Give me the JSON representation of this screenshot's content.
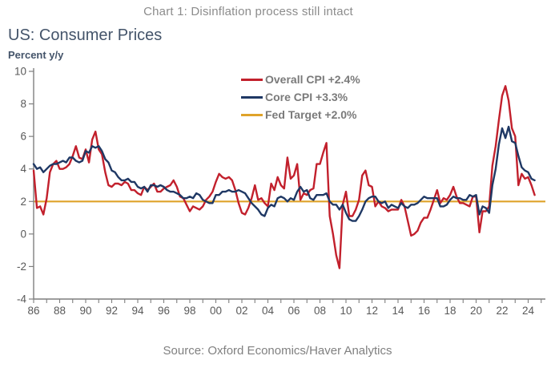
{
  "figure": {
    "caption": "Chart 1: Disinflation process still intact",
    "source": "Source: Oxford Economics/Haver Analytics"
  },
  "chart": {
    "title": "US: Consumer Prices",
    "unit_label": "Percent y/y"
  },
  "legend": {
    "items": [
      {
        "label": "Overall CPI +2.4%",
        "color": "#c2202c"
      },
      {
        "label": "Core CPI +3.3%",
        "color": "#1f3864"
      },
      {
        "label": "Fed Target +2.0%",
        "color": "#dfa32a"
      }
    ]
  },
  "colors": {
    "overall_cpi": "#c2202c",
    "core_cpi": "#1f3864",
    "fed_target": "#dfa32a",
    "axis": "#7f7f7f",
    "tick_text": "#595959",
    "heading": "#44546a",
    "caption_text": "#8c8c8c"
  },
  "chart_data": {
    "type": "line",
    "title": "US: Consumer Prices",
    "ylabel": "Percent y/y",
    "grid": false,
    "legend_position": "top-center",
    "x_axis": {
      "start_year": 1986,
      "end_year": 2025,
      "tick_every_years": 1,
      "label_every_years": 2,
      "tick_labels": [
        "86",
        "88",
        "90",
        "92",
        "94",
        "96",
        "98",
        "00",
        "02",
        "04",
        "06",
        "08",
        "10",
        "12",
        "14",
        "16",
        "18",
        "20",
        "22",
        "24"
      ]
    },
    "y_axis": {
      "min": -4,
      "max": 10,
      "ticks": [
        10,
        8,
        6,
        4,
        2,
        0,
        -2,
        -4
      ]
    },
    "series": [
      {
        "name": "Overall CPI",
        "current_value_pct": 2.4,
        "color_key": "overall_cpi",
        "x_start": 1986.0,
        "x_step": 0.25,
        "values": [
          3.9,
          1.6,
          1.7,
          1.2,
          2.2,
          3.8,
          4.3,
          4.5,
          4.0,
          4.0,
          4.1,
          4.3,
          4.8,
          5.4,
          4.7,
          4.6,
          5.2,
          4.4,
          5.8,
          6.3,
          5.2,
          4.9,
          3.8,
          3.0,
          2.9,
          3.1,
          3.1,
          3.0,
          3.2,
          3.1,
          2.7,
          2.7,
          2.5,
          2.4,
          2.9,
          2.7,
          2.9,
          3.1,
          2.6,
          2.6,
          2.8,
          2.9,
          3.0,
          3.3,
          2.9,
          2.3,
          2.2,
          1.8,
          1.4,
          1.7,
          1.6,
          1.5,
          1.7,
          2.1,
          2.3,
          2.6,
          3.2,
          3.7,
          3.5,
          3.4,
          3.5,
          3.3,
          2.7,
          1.9,
          1.3,
          1.2,
          1.6,
          2.2,
          3.0,
          2.1,
          2.2,
          1.9,
          1.7,
          3.1,
          2.7,
          3.5,
          3.0,
          2.8,
          4.7,
          3.4,
          3.6,
          4.3,
          2.1,
          2.5,
          2.4,
          2.7,
          2.8,
          4.3,
          4.3,
          5.0,
          5.6,
          1.1,
          0.0,
          -1.3,
          -2.1,
          1.8,
          2.6,
          1.1,
          1.1,
          1.5,
          2.1,
          3.6,
          3.9,
          3.0,
          2.9,
          1.7,
          2.0,
          1.7,
          1.6,
          1.4,
          1.5,
          1.5,
          1.5,
          2.1,
          1.7,
          0.8,
          -0.1,
          0.0,
          0.2,
          0.7,
          1.0,
          1.0,
          1.5,
          2.1,
          2.7,
          1.9,
          2.2,
          2.1,
          2.4,
          2.9,
          2.3,
          1.9,
          1.9,
          1.8,
          1.7,
          2.3,
          2.3,
          0.1,
          1.4,
          1.4,
          1.7,
          4.2,
          5.4,
          7.0,
          8.5,
          9.1,
          8.2,
          6.5,
          6.0,
          3.0,
          3.7,
          3.4,
          3.5,
          3.0,
          2.4
        ]
      },
      {
        "name": "Core CPI",
        "current_value_pct": 3.3,
        "color_key": "core_cpi",
        "x_start": 1986.0,
        "x_step": 0.25,
        "values": [
          4.3,
          4.0,
          4.1,
          3.8,
          4.0,
          4.2,
          4.3,
          4.3,
          4.4,
          4.5,
          4.4,
          4.7,
          4.7,
          4.5,
          4.4,
          4.5,
          5.1,
          5.0,
          5.4,
          5.3,
          5.4,
          5.1,
          4.6,
          4.4,
          3.9,
          3.8,
          3.5,
          3.3,
          3.3,
          3.4,
          3.2,
          3.2,
          2.9,
          2.8,
          2.9,
          2.6,
          3.0,
          3.0,
          2.9,
          3.0,
          2.9,
          2.7,
          2.6,
          2.6,
          2.5,
          2.4,
          2.2,
          2.2,
          2.3,
          2.2,
          2.5,
          2.4,
          2.1,
          2.0,
          1.9,
          1.9,
          2.4,
          2.4,
          2.6,
          2.6,
          2.7,
          2.6,
          2.6,
          2.7,
          2.6,
          2.5,
          2.2,
          1.9,
          1.7,
          1.5,
          1.2,
          1.1,
          1.6,
          1.8,
          1.7,
          2.2,
          2.3,
          2.2,
          2.0,
          2.2,
          2.1,
          2.6,
          2.9,
          2.6,
          2.7,
          2.2,
          2.1,
          2.4,
          2.4,
          2.4,
          2.5,
          2.0,
          1.8,
          1.8,
          1.5,
          1.8,
          1.3,
          0.9,
          0.8,
          0.8,
          1.1,
          1.5,
          2.0,
          2.2,
          2.3,
          2.3,
          2.0,
          1.9,
          2.0,
          1.6,
          1.8,
          1.7,
          1.6,
          1.9,
          1.7,
          1.6,
          1.8,
          1.8,
          1.9,
          2.1,
          2.3,
          2.2,
          2.2,
          2.2,
          2.2,
          1.7,
          1.7,
          1.8,
          2.1,
          2.3,
          2.2,
          2.2,
          2.1,
          2.1,
          2.4,
          2.3,
          2.4,
          1.2,
          1.7,
          1.6,
          1.3,
          3.0,
          4.0,
          5.5,
          6.5,
          5.9,
          6.6,
          5.7,
          5.6,
          4.8,
          4.1,
          3.9,
          3.8,
          3.4,
          3.3
        ]
      },
      {
        "name": "Fed Target",
        "current_value_pct": 2.0,
        "color_key": "fed_target",
        "constant": 2.0
      }
    ]
  }
}
